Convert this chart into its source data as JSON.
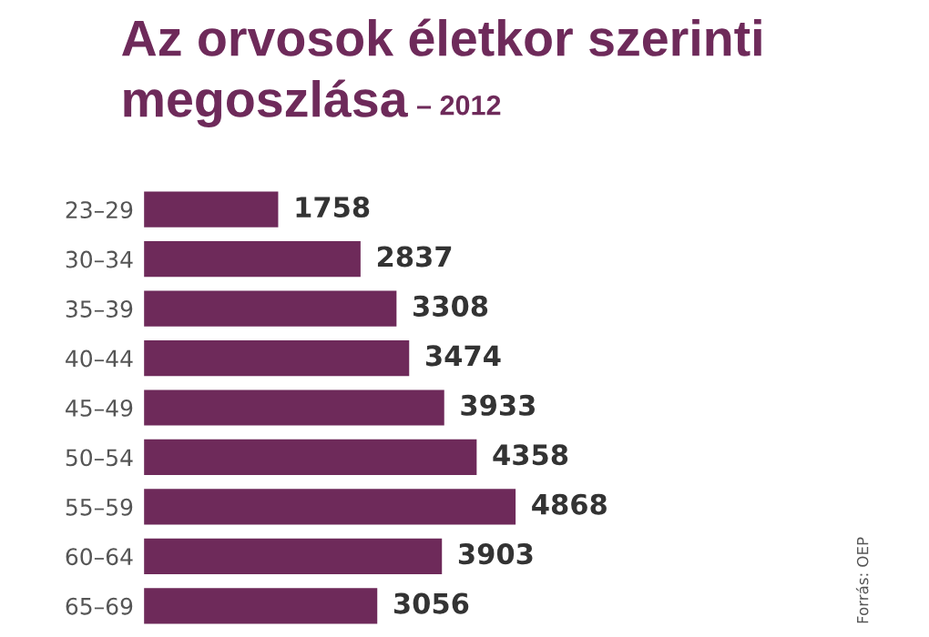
{
  "chart_data": {
    "type": "bar",
    "orientation": "horizontal",
    "title": "Az orvosok életkor szerinti\nmegoszlása",
    "subtitle": "– 2012",
    "categories": [
      "23–29",
      "30–34",
      "35–39",
      "40–44",
      "45–49",
      "50–54",
      "55–59",
      "60–64",
      "65–69"
    ],
    "values": [
      1758,
      2837,
      3308,
      3474,
      3933,
      4358,
      4868,
      3903,
      3056
    ],
    "color": "#6e2a5a",
    "data_labels": true,
    "annotations": [
      "Forrás: OEP"
    ]
  }
}
